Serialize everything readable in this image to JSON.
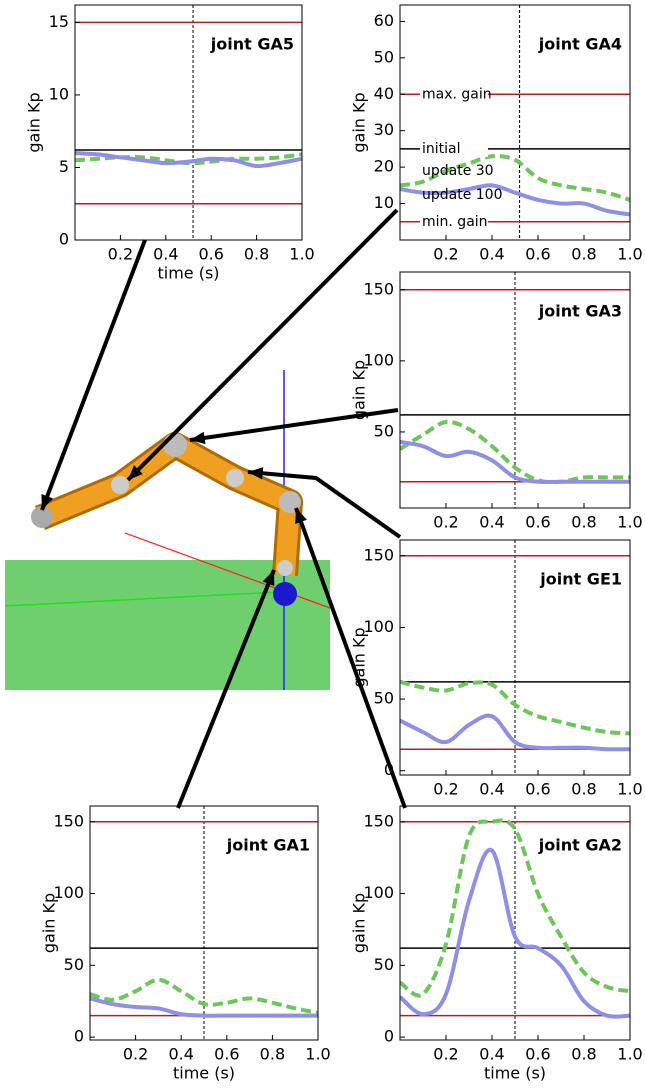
{
  "chart_data": [
    {
      "type": "line",
      "title": "joint GA5",
      "ylabel": "gain Kp",
      "xlabel": "time (s)",
      "xlim": [
        0,
        1
      ],
      "ylim": [
        0,
        16.2
      ],
      "xticks": [
        0.2,
        0.4,
        0.6,
        0.8,
        {
          "value": 1,
          "label": "1.0"
        }
      ],
      "yticks": [
        0,
        5,
        10,
        15
      ],
      "vline": 0.52,
      "reference_lines": [
        {
          "value": 15,
          "color": "#b22222"
        },
        {
          "value": 6.2,
          "color": "#000000"
        },
        {
          "value": 2.5,
          "color": "#b22222"
        }
      ],
      "x": [
        0,
        0.1,
        0.2,
        0.3,
        0.4,
        0.5,
        0.6,
        0.7,
        0.8,
        0.9,
        1.0
      ],
      "series": [
        {
          "color": "#6ec65a",
          "dash": true,
          "values": [
            5.5,
            5.6,
            5.7,
            5.7,
            5.5,
            5.3,
            5.4,
            5.6,
            5.6,
            5.7,
            5.9
          ]
        },
        {
          "color": "#8f8fe3",
          "dash": false,
          "values": [
            6.0,
            5.9,
            5.7,
            5.5,
            5.3,
            5.4,
            5.6,
            5.5,
            5.1,
            5.3,
            5.6
          ]
        }
      ]
    },
    {
      "type": "line",
      "title": "joint GA4",
      "ylabel": "gain Kp",
      "xlim": [
        0,
        1
      ],
      "ylim": [
        0,
        64.5
      ],
      "xticks": [
        0.2,
        0.4,
        0.6,
        0.8,
        {
          "value": 1,
          "label": "1.0"
        }
      ],
      "yticks": [
        10,
        20,
        30,
        40,
        50,
        60
      ],
      "vline": 0.52,
      "reference_lines": [
        {
          "name": "max. gain",
          "value": 40,
          "color": "#b22222"
        },
        {
          "name": "initial",
          "value": 25,
          "color": "#000000"
        },
        {
          "name": "min. gain",
          "value": 5,
          "color": "#b22222"
        }
      ],
      "x": [
        0,
        0.1,
        0.2,
        0.3,
        0.4,
        0.5,
        0.6,
        0.7,
        0.8,
        0.9,
        1.0
      ],
      "series": [
        {
          "name": "update 30",
          "color": "#6ec65a",
          "dash": true,
          "values": [
            15,
            16,
            19,
            21,
            23,
            22,
            17,
            15,
            14,
            13,
            11
          ]
        },
        {
          "name": "update 100",
          "color": "#8f8fe3",
          "dash": false,
          "values": [
            14,
            13,
            13,
            14,
            15,
            13,
            11,
            10,
            10,
            8,
            7
          ]
        }
      ]
    },
    {
      "type": "line",
      "title": "joint GA3",
      "ylabel": "gain Kp",
      "xlim": [
        0,
        1
      ],
      "ylim": [
        -3.5,
        162.5
      ],
      "xticks": [
        0.2,
        0.4,
        0.6,
        0.8,
        {
          "value": 1,
          "label": "1.0"
        }
      ],
      "yticks": [
        50,
        100,
        150
      ],
      "vline": 0.5,
      "reference_lines": [
        {
          "value": 150,
          "color": "#b22222"
        },
        {
          "value": 62,
          "color": "#000000"
        },
        {
          "value": 15,
          "color": "#b22222"
        }
      ],
      "x": [
        0,
        0.1,
        0.2,
        0.3,
        0.4,
        0.5,
        0.6,
        0.7,
        0.8,
        0.9,
        1.0
      ],
      "series": [
        {
          "color": "#6ec65a",
          "dash": true,
          "values": [
            38,
            48,
            57,
            52,
            40,
            25,
            16,
            15,
            18,
            18,
            18
          ]
        },
        {
          "color": "#8f8fe3",
          "dash": false,
          "values": [
            43,
            40,
            33,
            36,
            30,
            18,
            15,
            15,
            15,
            15,
            15
          ]
        }
      ]
    },
    {
      "type": "line",
      "title": "joint GE1",
      "ylabel": "gain Kp",
      "xlim": [
        0,
        1
      ],
      "ylim": [
        -3,
        161
      ],
      "xticks": [
        0.2,
        0.4,
        0.6,
        0.8,
        {
          "value": 1,
          "label": "1.0"
        }
      ],
      "yticks": [
        0,
        50,
        100,
        150
      ],
      "vline": 0.5,
      "reference_lines": [
        {
          "value": 150,
          "color": "#b22222"
        },
        {
          "value": 62,
          "color": "#000000"
        },
        {
          "value": 15,
          "color": "#b22222"
        }
      ],
      "x": [
        0,
        0.1,
        0.2,
        0.3,
        0.4,
        0.5,
        0.6,
        0.7,
        0.8,
        0.9,
        1.0
      ],
      "series": [
        {
          "color": "#6ec65a",
          "dash": true,
          "values": [
            62,
            58,
            56,
            61,
            60,
            46,
            38,
            34,
            30,
            27,
            26
          ]
        },
        {
          "color": "#8f8fe3",
          "dash": false,
          "values": [
            35,
            27,
            20,
            32,
            38,
            20,
            16,
            16,
            16,
            15,
            15
          ]
        }
      ]
    },
    {
      "type": "line",
      "title": "joint GA1",
      "ylabel": "gain Kp",
      "xlabel": "time (s)",
      "xlim": [
        0,
        1
      ],
      "ylim": [
        -2,
        161
      ],
      "xticks": [
        0.2,
        0.4,
        0.6,
        0.8,
        {
          "value": 1,
          "label": "1.0"
        }
      ],
      "yticks": [
        0,
        50,
        100,
        150
      ],
      "vline": 0.5,
      "reference_lines": [
        {
          "value": 150,
          "color": "#b22222"
        },
        {
          "value": 62,
          "color": "#000000"
        },
        {
          "value": 15,
          "color": "#b22222"
        }
      ],
      "x": [
        0,
        0.1,
        0.2,
        0.3,
        0.4,
        0.5,
        0.6,
        0.7,
        0.8,
        0.9,
        1.0
      ],
      "series": [
        {
          "color": "#6ec65a",
          "dash": true,
          "values": [
            30,
            26,
            32,
            40,
            32,
            23,
            24,
            27,
            24,
            20,
            17
          ]
        },
        {
          "color": "#8f8fe3",
          "dash": false,
          "values": [
            27,
            23,
            21,
            20,
            16,
            15,
            15,
            15,
            15,
            15,
            15
          ]
        }
      ]
    },
    {
      "type": "line",
      "title": "joint GA2",
      "ylabel": "gain Kp",
      "xlabel": "time (s)",
      "xlim": [
        0,
        1
      ],
      "ylim": [
        -2,
        161
      ],
      "xticks": [
        0.2,
        0.4,
        0.6,
        0.8,
        {
          "value": 1,
          "label": "1.0"
        }
      ],
      "yticks": [
        0,
        50,
        100,
        150
      ],
      "vline": 0.5,
      "reference_lines": [
        {
          "value": 150,
          "color": "#b22222"
        },
        {
          "value": 62,
          "color": "#000000"
        },
        {
          "value": 15,
          "color": "#b22222"
        }
      ],
      "x": [
        0,
        0.1,
        0.2,
        0.3,
        0.4,
        0.5,
        0.6,
        0.7,
        0.8,
        0.9,
        1.0
      ],
      "series": [
        {
          "color": "#6ec65a",
          "dash": true,
          "values": [
            38,
            30,
            65,
            140,
            150,
            145,
            100,
            70,
            45,
            35,
            32
          ]
        },
        {
          "color": "#8f8fe3",
          "dash": false,
          "values": [
            28,
            16,
            30,
            95,
            130,
            70,
            62,
            50,
            25,
            15,
            15
          ]
        }
      ]
    }
  ]
}
